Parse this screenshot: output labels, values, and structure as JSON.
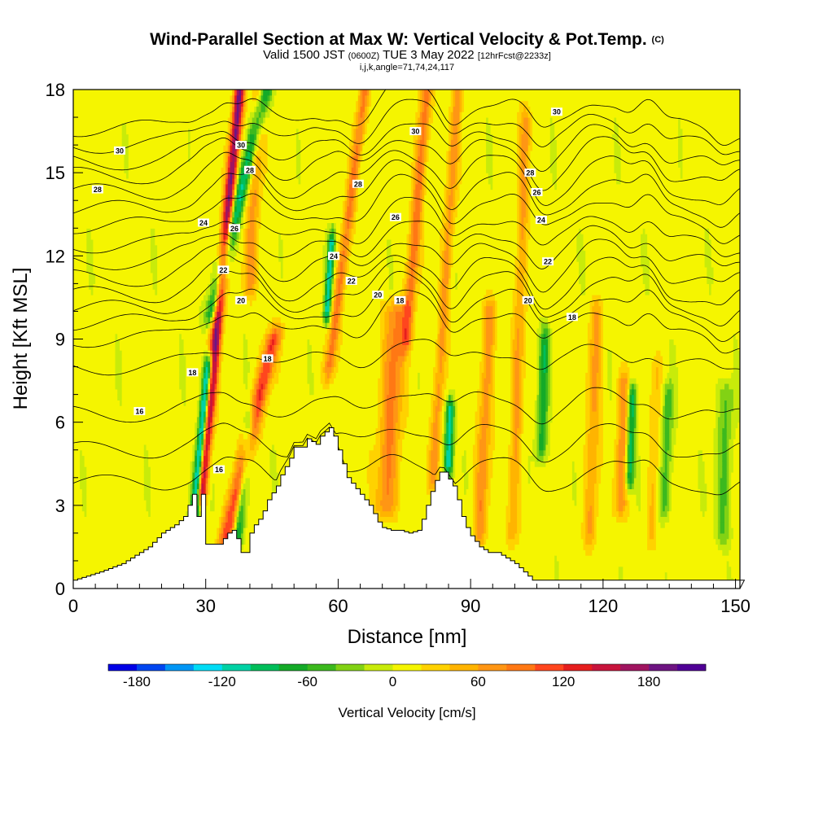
{
  "header": {
    "title": "Wind-Parallel Section at Max W: Vertical Velocity & Pot.Temp.",
    "title_mark": "(C)",
    "valid_prefix": "Valid 1500 JST",
    "valid_utc": "(0600Z)",
    "valid_date": "TUE 3 May 2022",
    "forecast": "[12hrFcst@2233z]",
    "indices": "i,j,k,angle=71,74,24,117"
  },
  "chart_data": {
    "type": "heatmap",
    "xlabel": "Distance [nm]",
    "ylabel": "Height [Kft MSL]",
    "xlim": [
      0,
      151
    ],
    "ylim": [
      0,
      18
    ],
    "x_ticks": [
      "0",
      "30",
      "60",
      "90",
      "120",
      "150"
    ],
    "x_tick_values": [
      0,
      30,
      60,
      90,
      120,
      150
    ],
    "y_ticks": [
      "0",
      "3",
      "6",
      "9",
      "12",
      "15",
      "18"
    ],
    "y_tick_values": [
      0,
      3,
      6,
      9,
      12,
      15,
      18
    ],
    "colorbar": {
      "title": "Vertical Velocity [cm/s]",
      "labels": [
        "-180",
        "-120",
        "-60",
        "0",
        "60",
        "120",
        "180"
      ],
      "label_values": [
        -180,
        -120,
        -60,
        0,
        60,
        120,
        180
      ],
      "min": -200,
      "max": 220,
      "colors": [
        "#0000e6",
        "#0046f0",
        "#0096f5",
        "#00dcf5",
        "#00d2a5",
        "#00be5a",
        "#14aa28",
        "#3cb91e",
        "#82d214",
        "#c8eb0a",
        "#f5f500",
        "#ffd200",
        "#ffb400",
        "#ff9614",
        "#ff7814",
        "#ff461e",
        "#e61e1e",
        "#c8143c",
        "#a01460",
        "#6e1482",
        "#500096"
      ]
    },
    "terrain_profile": {
      "x": [
        0,
        6,
        11,
        14,
        17,
        20,
        23,
        25,
        26,
        27,
        28,
        29,
        30,
        31,
        33,
        35,
        36,
        37,
        38,
        39,
        40,
        41,
        42,
        43,
        44,
        46,
        47,
        49,
        50,
        52,
        53,
        55,
        56,
        58,
        59,
        60,
        61,
        62,
        63,
        64,
        65,
        66,
        67,
        68,
        69,
        70,
        72,
        74,
        76,
        78,
        79,
        80,
        81,
        82,
        83,
        84,
        86,
        87,
        88,
        89,
        90,
        92,
        94,
        96,
        98,
        100,
        102,
        104,
        151
      ],
      "y": [
        0.3,
        0.6,
        0.9,
        1.2,
        1.5,
        2.0,
        2.3,
        2.6,
        3.0,
        3.4,
        2.6,
        3.4,
        1.6,
        1.6,
        1.6,
        2.0,
        2.1,
        1.8,
        1.3,
        1.3,
        2.0,
        2.3,
        2.5,
        2.8,
        3.2,
        3.7,
        4.1,
        4.7,
        5.1,
        5.1,
        5.4,
        5.2,
        5.5,
        5.8,
        5.5,
        5.0,
        4.5,
        4.0,
        3.8,
        3.6,
        3.4,
        3.2,
        3.0,
        2.7,
        2.4,
        2.2,
        2.1,
        2.1,
        2.0,
        2.1,
        2.5,
        3.0,
        3.5,
        3.9,
        4.2,
        4.2,
        3.7,
        3.2,
        2.6,
        2.2,
        1.9,
        1.5,
        1.3,
        1.3,
        1.1,
        0.9,
        0.6,
        0.3,
        0.3
      ]
    },
    "updrafts": [
      {
        "x": 29.0,
        "bottom": 3.5,
        "top": 18,
        "lean": 0.6,
        "halfwidth": 1.2,
        "value": 180
      },
      {
        "x": 34.5,
        "bottom": 1.8,
        "top": 9,
        "lean": 1.5,
        "halfwidth": 1.7,
        "value": 110
      },
      {
        "x": 40.0,
        "bottom": 11,
        "top": 18,
        "lean": 0.3,
        "halfwidth": 1.5,
        "value": 60
      },
      {
        "x": 58.0,
        "bottom": 8,
        "top": 18,
        "lean": 0.8,
        "halfwidth": 1.2,
        "value": 80
      },
      {
        "x": 71.0,
        "bottom": 3,
        "top": 10,
        "lean": 0.3,
        "halfwidth": 2.5,
        "value": 75
      },
      {
        "x": 75.5,
        "bottom": 9,
        "top": 18,
        "lean": 0.5,
        "halfwidth": 1.3,
        "value": 85
      },
      {
        "x": 81.5,
        "bottom": 4,
        "top": 18,
        "lean": 0.4,
        "halfwidth": 1.2,
        "value": 60
      },
      {
        "x": 92.0,
        "bottom": 2,
        "top": 10,
        "lean": 0.3,
        "halfwidth": 1.5,
        "value": 65
      },
      {
        "x": 99.5,
        "bottom": 2,
        "top": 17,
        "lean": 0.2,
        "halfwidth": 1.3,
        "value": 55
      },
      {
        "x": 117.0,
        "bottom": 2,
        "top": 10,
        "lean": 0.2,
        "halfwidth": 1.5,
        "value": 55
      },
      {
        "x": 124.0,
        "bottom": 3,
        "top": 7.5,
        "lean": 0.2,
        "halfwidth": 1.4,
        "value": 65
      },
      {
        "x": 131.0,
        "bottom": 2,
        "top": 8,
        "lean": 0.2,
        "halfwidth": 1.2,
        "value": 35
      }
    ],
    "downdrafts": [
      {
        "x": 27.5,
        "bottom": 2.8,
        "top": 8,
        "lean": 0.6,
        "halfwidth": 1.0,
        "value": -190
      },
      {
        "x": 31.5,
        "bottom": 10,
        "top": 18,
        "lean": 1.5,
        "halfwidth": 1.5,
        "value": -110
      },
      {
        "x": 37.5,
        "bottom": 2.0,
        "top": 6,
        "lean": 0.6,
        "halfwidth": 1.2,
        "value": -90
      },
      {
        "x": 57.5,
        "bottom": 10,
        "top": 12.5,
        "lean": 0.4,
        "halfwidth": 0.8,
        "value": -120
      },
      {
        "x": 85.0,
        "bottom": 4.5,
        "top": 6.5,
        "lean": 0.2,
        "halfwidth": 1.0,
        "value": -120
      },
      {
        "x": 106.0,
        "bottom": 5,
        "top": 9,
        "lean": 0.2,
        "halfwidth": 1.2,
        "value": -80
      },
      {
        "x": 126.0,
        "bottom": 4,
        "top": 7,
        "lean": 0.2,
        "halfwidth": 1.0,
        "value": -100
      },
      {
        "x": 134.0,
        "bottom": 3,
        "top": 7,
        "lean": 0.2,
        "halfwidth": 1.3,
        "value": -60
      },
      {
        "x": 147.0,
        "bottom": 2,
        "top": 7,
        "lean": 0.2,
        "halfwidth": 1.8,
        "value": -50
      }
    ],
    "theta_contours": {
      "levels": [
        14,
        15,
        16,
        17,
        18,
        19,
        20,
        21,
        22,
        23,
        24,
        25,
        26,
        27,
        28,
        29,
        30,
        31
      ],
      "base_height": [
        3.8,
        5.0,
        6.3,
        8.0,
        9.0,
        9.6,
        10.1,
        10.6,
        11.2,
        11.8,
        12.4,
        13.1,
        13.7,
        14.3,
        14.9,
        15.4,
        16.0,
        16.6
      ]
    },
    "contour_labels": [
      {
        "text": "30",
        "x": 10.5,
        "y": 15.8
      },
      {
        "text": "28",
        "x": 5.5,
        "y": 14.4
      },
      {
        "text": "16",
        "x": 15,
        "y": 6.4
      },
      {
        "text": "18",
        "x": 27,
        "y": 7.8
      },
      {
        "text": "24",
        "x": 29.5,
        "y": 13.2
      },
      {
        "text": "30",
        "x": 38,
        "y": 16.0
      },
      {
        "text": "28",
        "x": 40,
        "y": 15.1
      },
      {
        "text": "26",
        "x": 36.5,
        "y": 13.0
      },
      {
        "text": "22",
        "x": 34,
        "y": 11.5
      },
      {
        "text": "20",
        "x": 38,
        "y": 10.4
      },
      {
        "text": "18",
        "x": 44,
        "y": 8.3
      },
      {
        "text": "16",
        "x": 33,
        "y": 4.3
      },
      {
        "text": "24",
        "x": 59,
        "y": 12.0
      },
      {
        "text": "22",
        "x": 63,
        "y": 11.1
      },
      {
        "text": "20",
        "x": 69,
        "y": 10.6
      },
      {
        "text": "18",
        "x": 74,
        "y": 10.4
      },
      {
        "text": "28",
        "x": 64.5,
        "y": 14.6
      },
      {
        "text": "26",
        "x": 73,
        "y": 13.4
      },
      {
        "text": "30",
        "x": 77.5,
        "y": 16.5
      },
      {
        "text": "28",
        "x": 103.5,
        "y": 15.0
      },
      {
        "text": "26",
        "x": 105,
        "y": 14.3
      },
      {
        "text": "24",
        "x": 106,
        "y": 13.3
      },
      {
        "text": "22",
        "x": 107.5,
        "y": 11.8
      },
      {
        "text": "20",
        "x": 103,
        "y": 10.4
      },
      {
        "text": "18",
        "x": 113,
        "y": 9.8
      },
      {
        "text": "30",
        "x": 109.5,
        "y": 17.2
      }
    ]
  }
}
